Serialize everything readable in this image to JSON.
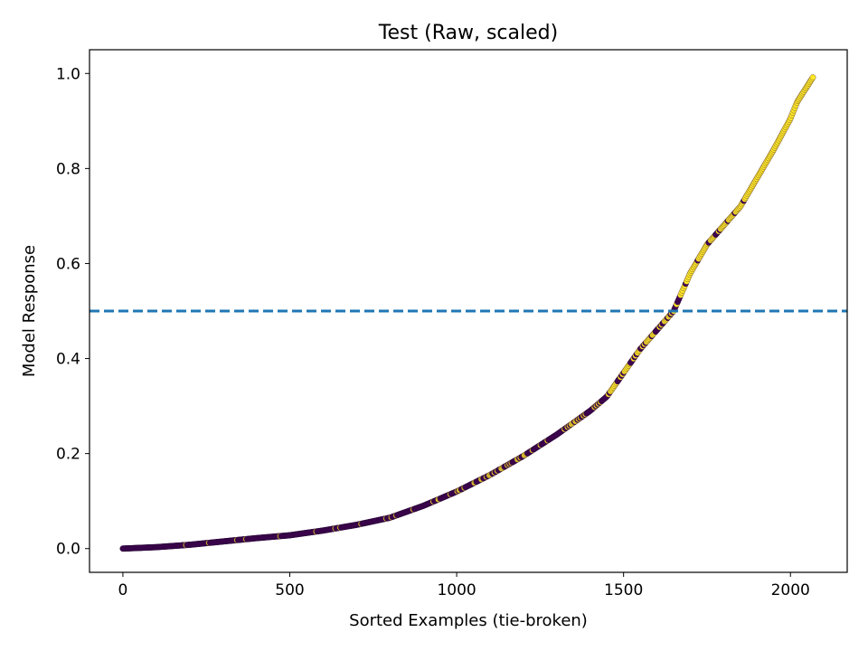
{
  "chart_data": {
    "type": "scatter",
    "title": "Test (Raw, scaled)",
    "xlabel": "Sorted Examples (tie-broken)",
    "ylabel": "Model Response",
    "xlim": [
      -100,
      2170
    ],
    "ylim": [
      -0.05,
      1.05
    ],
    "xticks": [
      0,
      500,
      1000,
      1500,
      2000
    ],
    "xtick_labels": [
      "0",
      "500",
      "1000",
      "1500",
      "2000"
    ],
    "yticks": [
      0.0,
      0.2,
      0.4,
      0.6,
      0.8,
      1.0
    ],
    "ytick_labels": [
      "0.0",
      "0.2",
      "0.4",
      "0.6",
      "0.8",
      "1.0"
    ],
    "grid": false,
    "threshold": {
      "y": 0.5,
      "style": "dashed",
      "color": "#1f77b4"
    },
    "colormap": [
      "#440154",
      "#fde725"
    ],
    "curve": {
      "x": [
        0,
        100,
        200,
        300,
        400,
        500,
        600,
        700,
        800,
        900,
        1000,
        1100,
        1200,
        1300,
        1400,
        1450,
        1500,
        1550,
        1600,
        1650,
        1700,
        1750,
        1800,
        1850,
        1900,
        1950,
        2000,
        2020,
        2070
      ],
      "y": [
        0.0,
        0.003,
        0.008,
        0.015,
        0.022,
        0.028,
        0.038,
        0.05,
        0.065,
        0.09,
        0.12,
        0.155,
        0.195,
        0.24,
        0.29,
        0.32,
        0.37,
        0.42,
        0.46,
        0.5,
        0.58,
        0.64,
        0.68,
        0.72,
        0.78,
        0.84,
        0.905,
        0.94,
        0.995
      ]
    },
    "n_points": 2070,
    "series": [
      {
        "x": [
          0,
          2070
        ],
        "y": [
          0.0,
          0.995
        ]
      }
    ]
  }
}
